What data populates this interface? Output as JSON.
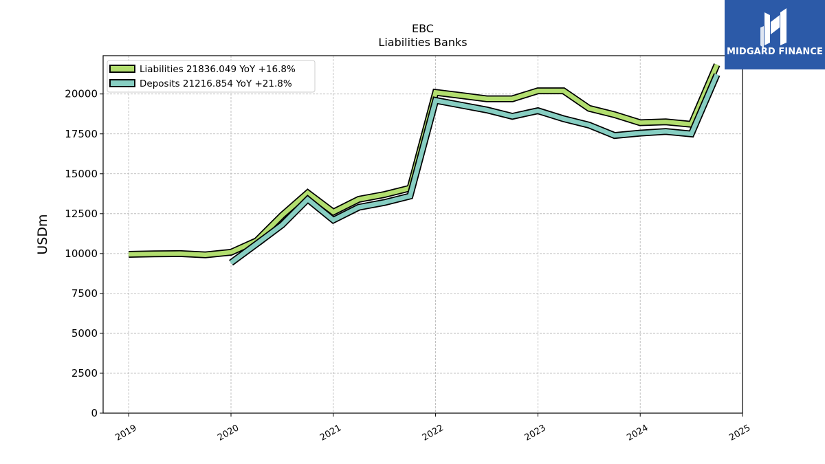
{
  "title": "EBC",
  "subtitle": "Liabilities Banks",
  "logo": {
    "text": "MIDGARD FINANCE",
    "background": "#2c5aa8"
  },
  "chart_data": {
    "type": "line",
    "title": "EBC",
    "subtitle": "Liabilities Banks",
    "xlabel": "",
    "ylabel": "USDm",
    "x_ticks": [
      "2019",
      "2020",
      "2021",
      "2022",
      "2023",
      "2024",
      "2025"
    ],
    "xlim": [
      "2018-10",
      "2025-01"
    ],
    "ylim": [
      0,
      22400
    ],
    "y_ticks": [
      0,
      2500,
      5000,
      7500,
      10000,
      12500,
      15000,
      17500,
      20000
    ],
    "grid": true,
    "legend_position": "top-left",
    "series": [
      {
        "name": "Liabilities",
        "legend_label": "Liabilities  21836.049 YoY +16.8%",
        "color": "#b2de6f",
        "x": [
          "2019-01",
          "2019-04",
          "2019-07",
          "2019-10",
          "2020-01",
          "2020-04",
          "2020-07",
          "2020-10",
          "2021-01",
          "2021-04",
          "2021-07",
          "2021-10",
          "2022-01",
          "2022-04",
          "2022-07",
          "2022-10",
          "2023-01",
          "2023-04",
          "2023-07",
          "2023-10",
          "2024-01",
          "2024-04",
          "2024-07",
          "2024-10"
        ],
        "values": [
          9950,
          9980,
          10000,
          9920,
          10080,
          10800,
          12400,
          13800,
          12600,
          13400,
          13700,
          14100,
          20100,
          19900,
          19700,
          19700,
          20200,
          20200,
          19100,
          18700,
          18200,
          18250,
          18100,
          21836
        ]
      },
      {
        "name": "Deposits",
        "legend_label": "Deposits  21216.854 YoY +21.8%",
        "color": "#87cec2",
        "x": [
          "2020-01",
          "2020-04",
          "2020-07",
          "2020-10",
          "2021-01",
          "2021-04",
          "2021-07",
          "2021-10",
          "2022-01",
          "2022-04",
          "2022-07",
          "2022-10",
          "2023-01",
          "2023-04",
          "2023-07",
          "2023-10",
          "2024-01",
          "2024-04",
          "2024-07",
          "2024-10"
        ],
        "values": [
          9420,
          10600,
          11800,
          13400,
          12100,
          12900,
          13200,
          13600,
          19600,
          19300,
          19000,
          18600,
          18950,
          18450,
          18050,
          17400,
          17550,
          17650,
          17500,
          21217
        ]
      }
    ]
  }
}
